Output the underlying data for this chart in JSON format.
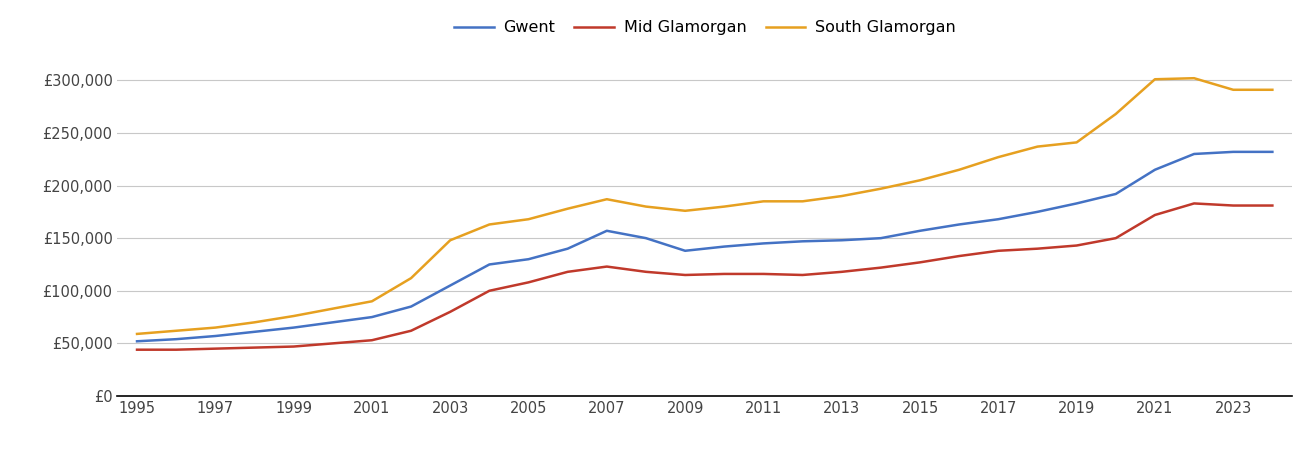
{
  "years": [
    1995,
    1996,
    1997,
    1998,
    1999,
    2000,
    2001,
    2002,
    2003,
    2004,
    2005,
    2006,
    2007,
    2008,
    2009,
    2010,
    2011,
    2012,
    2013,
    2014,
    2015,
    2016,
    2017,
    2018,
    2019,
    2020,
    2021,
    2022,
    2023,
    2024
  ],
  "gwent": [
    52000,
    54000,
    57000,
    61000,
    65000,
    70000,
    75000,
    85000,
    105000,
    125000,
    130000,
    140000,
    157000,
    150000,
    138000,
    142000,
    145000,
    147000,
    148000,
    150000,
    157000,
    163000,
    168000,
    175000,
    183000,
    192000,
    215000,
    230000,
    232000,
    232000
  ],
  "mid_glamorgan": [
    44000,
    44000,
    45000,
    46000,
    47000,
    50000,
    53000,
    62000,
    80000,
    100000,
    108000,
    118000,
    123000,
    118000,
    115000,
    116000,
    116000,
    115000,
    118000,
    122000,
    127000,
    133000,
    138000,
    140000,
    143000,
    150000,
    172000,
    183000,
    181000,
    181000
  ],
  "south_glamorgan": [
    59000,
    62000,
    65000,
    70000,
    76000,
    83000,
    90000,
    112000,
    148000,
    163000,
    168000,
    178000,
    187000,
    180000,
    176000,
    180000,
    185000,
    185000,
    190000,
    197000,
    205000,
    215000,
    227000,
    237000,
    241000,
    268000,
    301000,
    302000,
    291000,
    291000
  ],
  "gwent_color": "#4472c4",
  "mid_glamorgan_color": "#c0392b",
  "south_glamorgan_color": "#e6a020",
  "background_color": "#ffffff",
  "grid_color": "#c8c8c8",
  "legend_labels": [
    "Gwent",
    "Mid Glamorgan",
    "South Glamorgan"
  ],
  "ylim": [
    0,
    325000
  ],
  "yticks": [
    0,
    50000,
    100000,
    150000,
    200000,
    250000,
    300000
  ],
  "ytick_labels": [
    "£0",
    "£50,000",
    "£100,000",
    "£150,000",
    "£200,000",
    "£250,000",
    "£300,000"
  ],
  "xtick_years": [
    1995,
    1997,
    1999,
    2001,
    2003,
    2005,
    2007,
    2009,
    2011,
    2013,
    2015,
    2017,
    2019,
    2021,
    2023
  ],
  "xlim": [
    1994.5,
    2024.5
  ]
}
